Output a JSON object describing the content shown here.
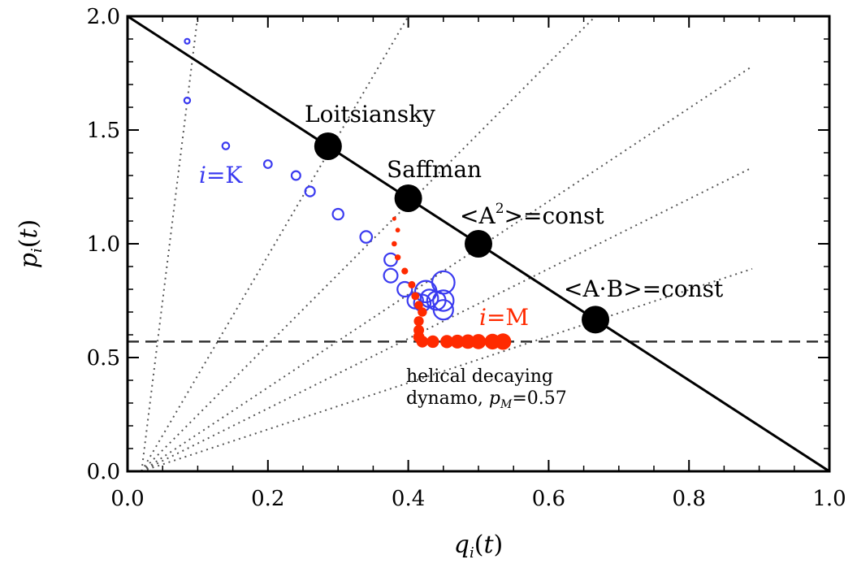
{
  "chart_data": {
    "type": "scatter",
    "xlabel": "q_i(t)",
    "ylabel": "p_i(t)",
    "xlim": [
      0.0,
      1.0
    ],
    "ylim": [
      0.0,
      2.0
    ],
    "x_ticks": [
      "0.0",
      "0.2",
      "0.4",
      "0.6",
      "0.8",
      "1.0"
    ],
    "y_ticks": [
      "0.0",
      "0.5",
      "1.0",
      "1.5",
      "2.0"
    ],
    "reference_lines": {
      "solid_line": {
        "p_equals": "2(1-q)"
      },
      "dotted_rays_slopes": [
        20,
        5,
        3,
        2,
        1.5,
        1
      ],
      "dashed_horizontal": 0.57
    },
    "named_points": [
      {
        "label": "Loitsiansky",
        "q": 0.2857,
        "p": 1.4286
      },
      {
        "label": "Saffman",
        "q": 0.4,
        "p": 1.2
      },
      {
        "label": "<A²>=const",
        "q": 0.5,
        "p": 1.0
      },
      {
        "label": "<A·B>=const",
        "q": 0.6667,
        "p": 0.6667
      }
    ],
    "series": [
      {
        "name": "i=K",
        "color": "#3a3af0",
        "marker": "open-circle",
        "points": [
          [
            0.085,
            1.89
          ],
          [
            0.085,
            1.63
          ],
          [
            0.14,
            1.43
          ],
          [
            0.2,
            1.35
          ],
          [
            0.24,
            1.3
          ],
          [
            0.26,
            1.23
          ],
          [
            0.3,
            1.13
          ],
          [
            0.34,
            1.03
          ],
          [
            0.375,
            0.93
          ],
          [
            0.375,
            0.86
          ],
          [
            0.395,
            0.8
          ],
          [
            0.41,
            0.75
          ],
          [
            0.42,
            0.74
          ],
          [
            0.43,
            0.76
          ],
          [
            0.44,
            0.75
          ],
          [
            0.45,
            0.71
          ],
          [
            0.45,
            0.75
          ],
          [
            0.425,
            0.79
          ],
          [
            0.45,
            0.83
          ]
        ]
      },
      {
        "name": "i=M",
        "color": "#ff2a00",
        "marker": "filled-circle",
        "points": [
          [
            0.38,
            1.11
          ],
          [
            0.385,
            1.06
          ],
          [
            0.38,
            1.0
          ],
          [
            0.385,
            0.94
          ],
          [
            0.395,
            0.88
          ],
          [
            0.405,
            0.82
          ],
          [
            0.41,
            0.77
          ],
          [
            0.415,
            0.73
          ],
          [
            0.42,
            0.7
          ],
          [
            0.415,
            0.66
          ],
          [
            0.415,
            0.62
          ],
          [
            0.415,
            0.59
          ],
          [
            0.42,
            0.57
          ],
          [
            0.435,
            0.57
          ],
          [
            0.455,
            0.57
          ],
          [
            0.47,
            0.57
          ],
          [
            0.485,
            0.57
          ],
          [
            0.5,
            0.57
          ],
          [
            0.52,
            0.57
          ],
          [
            0.535,
            0.57
          ]
        ]
      }
    ]
  },
  "annotations": {
    "loitsiansky": "Loitsiansky",
    "saffman": "Saffman",
    "a2_prefix": "<A",
    "a2_sup": "2",
    "a2_suffix": ">=const",
    "ab_const": "<A·B>=const",
    "label_k_i": "i",
    "label_k_rest": "=K",
    "label_m_i": "i",
    "label_m_rest": "=M",
    "helical_line1": "helical decaying",
    "helical_line2_prefix": "dynamo, ",
    "helical_line2_p": "p",
    "helical_line2_sub": "M",
    "helical_line2_val": "=0.57"
  }
}
